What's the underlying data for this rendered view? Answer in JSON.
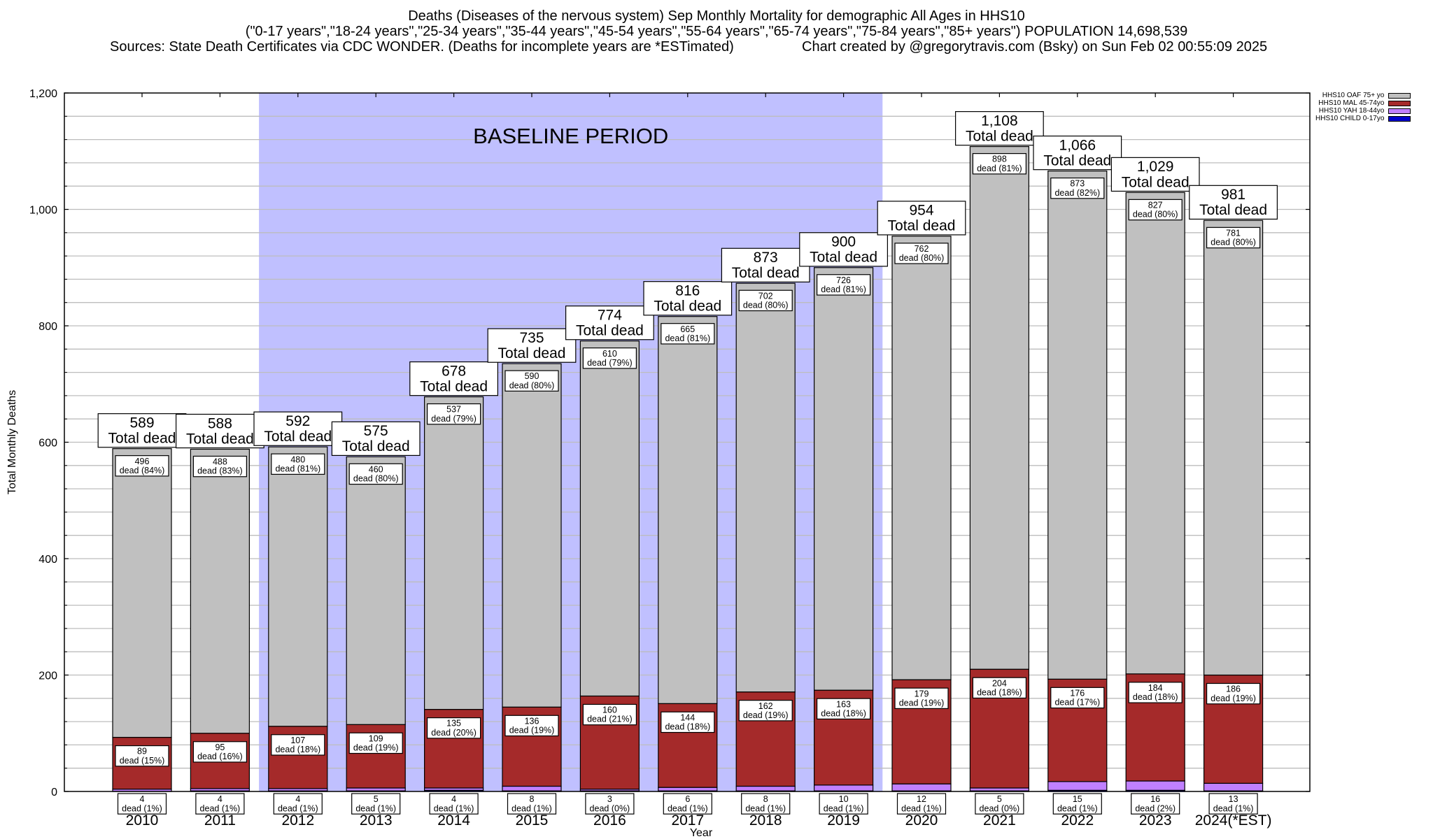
{
  "header": {
    "title_line1": "Deaths (Diseases of the nervous system) Sep Monthly Mortality for demographic All Ages in HHS10",
    "title_line2": "(\"0-17 years\",\"18-24 years\",\"25-34 years\",\"35-44 years\",\"45-54 years\",\"55-64 years\",\"65-74 years\",\"75-84 years\",\"85+ years\") POPULATION 14,698,539",
    "sources": "Sources: State Death Certificates via CDC WONDER. (Deaths for incomplete years are *ESTimated)",
    "credit": "Chart created by @gregorytravis.com (Bsky) on Sun Feb 02 00:55:09 2025"
  },
  "chart_data": {
    "type": "bar",
    "stacked": true,
    "title": "Deaths (Diseases of the nervous system) Sep Monthly Mortality for demographic All Ages in HHS10",
    "xlabel": "Year",
    "ylabel": "Total Monthly Deaths",
    "ylim": [
      0,
      1200
    ],
    "yticks": [
      0,
      200,
      400,
      600,
      800,
      1000,
      1200
    ],
    "ytick_labels": [
      "0",
      "200",
      "400",
      "600",
      "800",
      "1,000",
      "1,200"
    ],
    "minor_grid_step": 40,
    "grid": true,
    "categories": [
      "2010",
      "2011",
      "2012",
      "2013",
      "2014",
      "2015",
      "2016",
      "2017",
      "2018",
      "2019",
      "2020",
      "2021",
      "2022",
      "2023",
      "2024(*EST)"
    ],
    "totals": [
      589,
      588,
      592,
      575,
      678,
      735,
      774,
      816,
      873,
      900,
      954,
      1108,
      1066,
      1029,
      981
    ],
    "total_labels": [
      "589",
      "588",
      "592",
      "575",
      "678",
      "735",
      "774",
      "816",
      "873",
      "900",
      "954",
      "1,108",
      "1,066",
      "1,029",
      "981"
    ],
    "total_suffix": "Total dead",
    "series": [
      {
        "name": "HHS10 CHILD 0-17yo",
        "color": "#0000cc",
        "values": [
          0,
          1,
          1,
          1,
          2,
          1,
          1,
          1,
          1,
          1,
          1,
          1,
          2,
          2,
          1
        ],
        "labeled": false
      },
      {
        "name": "HHS10 YAH 18-44yo",
        "color": "#c080ff",
        "values": [
          4,
          4,
          4,
          5,
          4,
          8,
          3,
          6,
          8,
          10,
          12,
          5,
          15,
          16,
          13
        ],
        "pct": [
          "1%",
          "1%",
          "1%",
          "1%",
          "1%",
          "1%",
          "0%",
          "1%",
          "1%",
          "1%",
          "1%",
          "0%",
          "1%",
          "2%",
          "1%"
        ],
        "labeled": true
      },
      {
        "name": "HHS10 MAL 45-74yo",
        "color": "#a52a2a",
        "values": [
          89,
          95,
          107,
          109,
          135,
          136,
          160,
          144,
          162,
          163,
          179,
          204,
          176,
          184,
          186
        ],
        "pct": [
          "15%",
          "16%",
          "18%",
          "19%",
          "20%",
          "19%",
          "21%",
          "18%",
          "19%",
          "18%",
          "19%",
          "18%",
          "17%",
          "18%",
          "19%"
        ],
        "labeled": true
      },
      {
        "name": "HHS10 OAF 75+ yo",
        "color": "#c0c0c0",
        "values": [
          496,
          488,
          480,
          460,
          537,
          590,
          610,
          665,
          702,
          726,
          762,
          898,
          873,
          827,
          781
        ],
        "pct": [
          "84%",
          "83%",
          "81%",
          "80%",
          "79%",
          "80%",
          "79%",
          "81%",
          "80%",
          "81%",
          "80%",
          "81%",
          "82%",
          "80%",
          "80%"
        ],
        "labeled": true
      }
    ],
    "segment_label_word": "dead",
    "annotations": [
      {
        "type": "band",
        "label": "BASELINE PERIOD",
        "from_category": "2012",
        "to_category": "2019",
        "color": "#c0c0ff"
      }
    ],
    "legend": {
      "placement": "top-right",
      "entries": [
        {
          "label": "HHS10 OAF 75+ yo",
          "color": "#c0c0c0"
        },
        {
          "label": "HHS10 MAL 45-74yo",
          "color": "#a52a2a"
        },
        {
          "label": "HHS10 YAH 18-44yo",
          "color": "#c080ff"
        },
        {
          "label": "HHS10 CHILD 0-17yo",
          "color": "#0000cc"
        }
      ]
    }
  }
}
